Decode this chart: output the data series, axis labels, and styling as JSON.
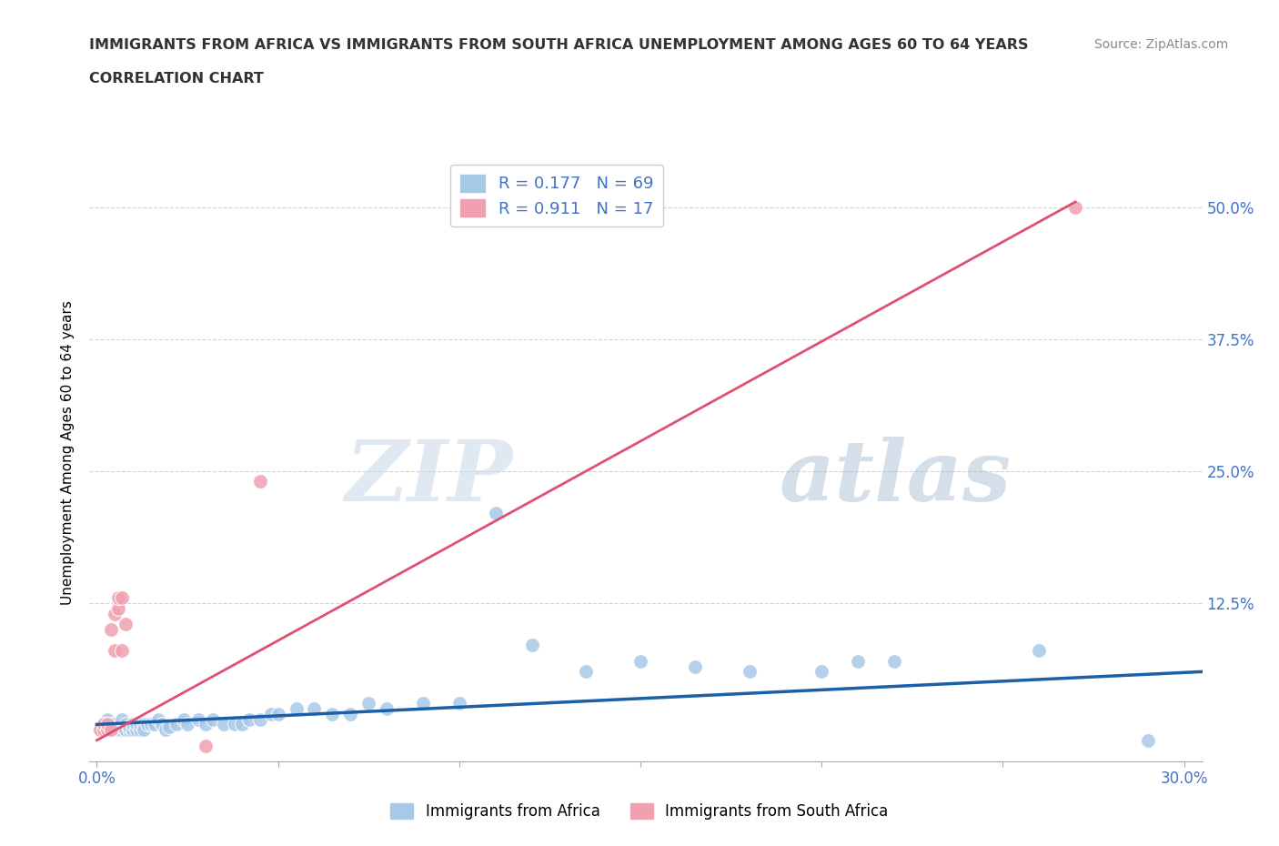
{
  "title_line1": "IMMIGRANTS FROM AFRICA VS IMMIGRANTS FROM SOUTH AFRICA UNEMPLOYMENT AMONG AGES 60 TO 64 YEARS",
  "title_line2": "CORRELATION CHART",
  "source": "Source: ZipAtlas.com",
  "ylabel": "Unemployment Among Ages 60 to 64 years",
  "xlim": [
    -0.002,
    0.305
  ],
  "ylim": [
    -0.025,
    0.56
  ],
  "xticks": [
    0.0,
    0.05,
    0.1,
    0.15,
    0.2,
    0.25,
    0.3
  ],
  "xtick_labels": [
    "0.0%",
    "",
    "",
    "",
    "",
    "",
    "30.0%"
  ],
  "yticks_right": [
    0.0,
    0.125,
    0.25,
    0.375,
    0.5
  ],
  "ytick_right_labels": [
    "",
    "12.5%",
    "25.0%",
    "37.5%",
    "50.0%"
  ],
  "grid_color": "#c8c8c8",
  "background_color": "#ffffff",
  "legend_r1": "R = 0.177",
  "legend_n1": "N = 69",
  "legend_r2": "R = 0.911",
  "legend_n2": "N = 17",
  "color_blue": "#a8c8e8",
  "color_pink": "#f0a0b0",
  "trendline_blue": "#1a5fa8",
  "trendline_pink": "#e05070",
  "label_blue": "Immigrants from Africa",
  "label_pink": "Immigrants from South Africa",
  "blue_x": [
    0.001,
    0.002,
    0.002,
    0.003,
    0.003,
    0.003,
    0.004,
    0.004,
    0.004,
    0.005,
    0.005,
    0.005,
    0.006,
    0.006,
    0.007,
    0.007,
    0.007,
    0.008,
    0.008,
    0.008,
    0.009,
    0.009,
    0.01,
    0.01,
    0.011,
    0.011,
    0.012,
    0.012,
    0.013,
    0.013,
    0.014,
    0.015,
    0.016,
    0.017,
    0.018,
    0.019,
    0.02,
    0.022,
    0.024,
    0.025,
    0.028,
    0.03,
    0.032,
    0.035,
    0.038,
    0.04,
    0.042,
    0.045,
    0.048,
    0.05,
    0.055,
    0.06,
    0.065,
    0.07,
    0.075,
    0.08,
    0.09,
    0.1,
    0.11,
    0.12,
    0.135,
    0.15,
    0.165,
    0.18,
    0.2,
    0.21,
    0.22,
    0.26,
    0.29
  ],
  "blue_y": [
    0.005,
    0.005,
    0.01,
    0.005,
    0.008,
    0.015,
    0.005,
    0.01,
    0.005,
    0.008,
    0.005,
    0.01,
    0.005,
    0.008,
    0.005,
    0.008,
    0.015,
    0.005,
    0.01,
    0.005,
    0.005,
    0.008,
    0.005,
    0.01,
    0.005,
    0.01,
    0.005,
    0.01,
    0.01,
    0.005,
    0.01,
    0.01,
    0.01,
    0.015,
    0.01,
    0.005,
    0.008,
    0.01,
    0.015,
    0.01,
    0.015,
    0.01,
    0.015,
    0.01,
    0.01,
    0.01,
    0.015,
    0.015,
    0.02,
    0.02,
    0.025,
    0.025,
    0.02,
    0.02,
    0.03,
    0.025,
    0.03,
    0.03,
    0.21,
    0.085,
    0.06,
    0.07,
    0.065,
    0.06,
    0.06,
    0.07,
    0.07,
    0.08,
    -0.005
  ],
  "pink_x": [
    0.001,
    0.002,
    0.002,
    0.003,
    0.003,
    0.004,
    0.004,
    0.005,
    0.005,
    0.006,
    0.006,
    0.007,
    0.007,
    0.008,
    0.03,
    0.045,
    0.27
  ],
  "pink_y": [
    0.005,
    0.005,
    0.01,
    0.005,
    0.01,
    0.005,
    0.1,
    0.08,
    0.115,
    0.12,
    0.13,
    0.08,
    0.13,
    0.105,
    -0.01,
    0.24,
    0.5
  ],
  "pink_trendline_x": [
    0.0,
    0.27
  ],
  "pink_trendline_y": [
    -0.005,
    0.505
  ],
  "blue_trendline_x": [
    0.0,
    0.305
  ],
  "blue_trendline_y": [
    0.01,
    0.06
  ]
}
